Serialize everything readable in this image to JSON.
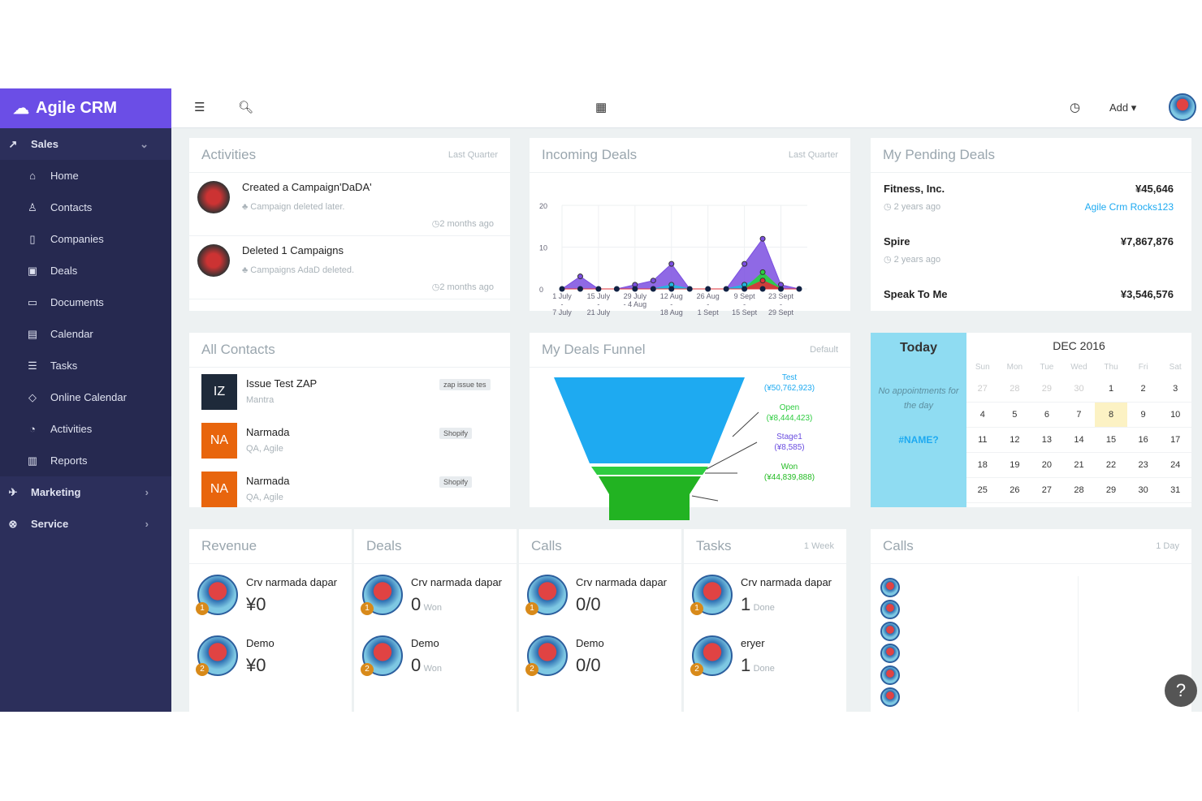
{
  "brand": "Agile CRM",
  "sidebar": {
    "sections": [
      {
        "label": "Sales",
        "items": [
          "Home",
          "Contacts",
          "Companies",
          "Deals",
          "Documents",
          "Calendar",
          "Tasks",
          "Online Calendar",
          "Activities",
          "Reports"
        ]
      },
      {
        "label": "Marketing"
      },
      {
        "label": "Service"
      }
    ]
  },
  "header": {
    "add_label": "Add"
  },
  "activities": {
    "title": "Activities",
    "range": "Last Quarter",
    "items": [
      {
        "title": "Created a Campaign'DaDA'",
        "detail": "Campaign deleted later.",
        "time": "2 months ago"
      },
      {
        "title": "Deleted 1 Campaigns",
        "detail": "Campaigns AdaD deleted.",
        "time": "2 months ago"
      }
    ]
  },
  "incoming": {
    "title": "Incoming Deals",
    "range": "Last Quarter"
  },
  "chart_data": {
    "type": "area",
    "title": "Incoming Deals",
    "ylim": [
      0,
      20
    ],
    "yticks": [
      0,
      10,
      20
    ],
    "x_labels": [
      [
        "1 July",
        "-",
        "7 July"
      ],
      [
        "15 July",
        "-",
        "21 July"
      ],
      [
        "29 July",
        "- 4 Aug",
        ""
      ],
      [
        "12 Aug",
        "-",
        "18 Aug"
      ],
      [
        "26 Aug",
        "-",
        "1 Sept"
      ],
      [
        "9 Sept",
        "-",
        "15 Sept"
      ],
      [
        "23 Sept",
        "-",
        "29 Sept"
      ]
    ],
    "series": [
      {
        "color": "#7b4fe0",
        "values": [
          0,
          3,
          0,
          0,
          1,
          2,
          6,
          0,
          0,
          0,
          6,
          12,
          1,
          0
        ]
      },
      {
        "color": "#1fb8e0",
        "values": [
          0,
          0,
          0,
          0,
          0,
          0,
          1,
          0,
          0,
          0,
          1,
          3,
          0,
          0
        ]
      },
      {
        "color": "#2ecc40",
        "values": [
          0,
          0,
          0,
          0,
          0,
          0,
          0,
          0,
          0,
          0,
          0,
          4,
          0,
          0
        ]
      },
      {
        "color": "#e0303a",
        "values": [
          0,
          0,
          0,
          0,
          0,
          0,
          0,
          0,
          0,
          0,
          0,
          2,
          0,
          0
        ]
      }
    ]
  },
  "pending": {
    "title": "My Pending Deals",
    "items": [
      {
        "name": "Fitness, Inc.",
        "amount": "¥45,646",
        "time": "2 years ago",
        "link": "Agile Crm Rocks123"
      },
      {
        "name": "Spire",
        "amount": "¥7,867,876",
        "time": "2 years ago"
      },
      {
        "name": "Speak To Me",
        "amount": "¥3,546,576"
      }
    ]
  },
  "contacts": {
    "title": "All Contacts",
    "items": [
      {
        "initials": "IZ",
        "name": "Issue Test ZAP",
        "sub": "Mantra",
        "tag": "zap issue tes",
        "color": "#1e2a3a"
      },
      {
        "initials": "NA",
        "name": "Narmada",
        "sub": "QA, Agile",
        "tag": "Shopify",
        "color": "#e8650d"
      },
      {
        "initials": "NA",
        "name": "Narmada",
        "sub": "QA, Agile",
        "tag": "Shopify",
        "color": "#e8650d"
      }
    ]
  },
  "funnel": {
    "title": "My Deals Funnel",
    "range": "Default",
    "stages": [
      {
        "name": "Test",
        "value": "(¥50,762,923)",
        "color": "#1eaaf1"
      },
      {
        "name": "Open",
        "value": "(¥8,444,423)",
        "color": "#2ecc40"
      },
      {
        "name": "Stage1",
        "value": "(¥8,585)",
        "color": "#6a4de0"
      },
      {
        "name": "Won",
        "value": "(¥44,839,888)",
        "color": "#22bb22"
      }
    ]
  },
  "calendar": {
    "today": "Today",
    "empty": "No appointments for the day",
    "name": "#NAME?",
    "month": "DEC 2016",
    "days": [
      "Sun",
      "Mon",
      "Tue",
      "Wed",
      "Thu",
      "Fri",
      "Sat"
    ],
    "weeks": [
      [
        "27",
        "28",
        "29",
        "30",
        "1",
        "2",
        "3"
      ],
      [
        "4",
        "5",
        "6",
        "7",
        "8",
        "9",
        "10"
      ],
      [
        "11",
        "12",
        "13",
        "14",
        "15",
        "16",
        "17"
      ],
      [
        "18",
        "19",
        "20",
        "21",
        "22",
        "23",
        "24"
      ],
      [
        "25",
        "26",
        "27",
        "28",
        "29",
        "30",
        "31"
      ]
    ],
    "highlight": "8"
  },
  "stats": [
    {
      "title": "Revenue",
      "rows": [
        {
          "name": "Crv narmada dapar",
          "value": "¥0",
          "unit": ""
        },
        {
          "name": "Demo",
          "value": "¥0",
          "unit": ""
        }
      ]
    },
    {
      "title": "Deals",
      "rows": [
        {
          "name": "Crv narmada dapar",
          "value": "0",
          "unit": "Won"
        },
        {
          "name": "Demo",
          "value": "0",
          "unit": "Won"
        }
      ]
    },
    {
      "title": "Calls",
      "rows": [
        {
          "name": "Crv narmada dapar",
          "value": "0/0",
          "unit": ""
        },
        {
          "name": "Demo",
          "value": "0/0",
          "unit": ""
        }
      ]
    },
    {
      "title": "Tasks",
      "range": "1 Week",
      "rows": [
        {
          "name": "Crv narmada dapar",
          "value": "1",
          "unit": "Done"
        },
        {
          "name": "eryer",
          "value": "1",
          "unit": "Done"
        }
      ]
    }
  ],
  "calls": {
    "title": "Calls",
    "range": "1 Day"
  }
}
